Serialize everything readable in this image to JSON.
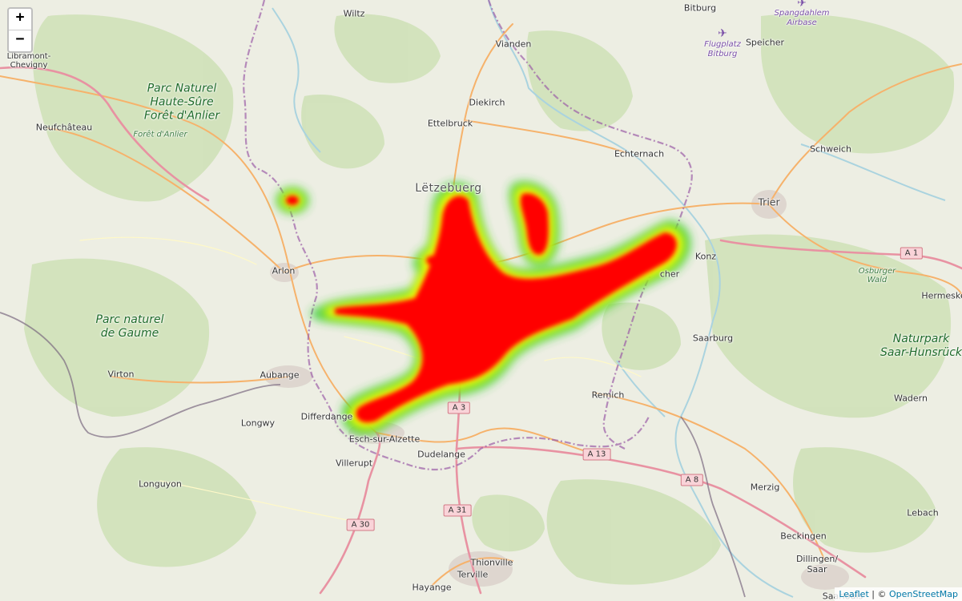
{
  "zoom": {
    "in_label": "+",
    "out_label": "−"
  },
  "attribution": {
    "leaflet": "Leaflet",
    "separator": " | © ",
    "osm": "OpenStreetMap"
  },
  "places": {
    "wiltz": "Wiltz",
    "vianden": "Vianden",
    "diekirch": "Diekirch",
    "ettelbruck": "Ettelbruck",
    "echternach": "Echternach",
    "letzebuerg": "Lëtzebuerg",
    "libramont": "Libramont-\nChevigny",
    "neufchateau": "Neufchâteau",
    "arlon": "Arlon",
    "virton": "Virton",
    "aubange": "Aubange",
    "longwy": "Longwy",
    "differdange": "Differdange",
    "esch": "Esch-sur-Alzette",
    "villerupt": "Villerupt",
    "dudelange": "Dudelange",
    "longuyon": "Longuyon",
    "thionville": "Thionville",
    "terville": "Terville",
    "hayange": "Hayange",
    "remich": "Remich",
    "grevenmacher": "cher",
    "konz": "Konz",
    "trier": "Trier",
    "saarburg": "Saarburg",
    "schweich": "Schweich",
    "bitburg": "Bitburg",
    "speicher": "Speicher",
    "hermeskeil": "Hermeske",
    "wadern": "Wadern",
    "merzig": "Merzig",
    "lebach": "Lebach",
    "beckingen": "Beckingen",
    "dillingen": "Dillingen/\nSaar",
    "saarlouis": "Saarlouis"
  },
  "parks": {
    "haute_sure": "Parc Naturel\nHaute-Sûre\nForêt d'Anlier",
    "foret_anlier": "Forêt d'Anlier",
    "gaume": "Parc naturel\nde Gaume",
    "saar_hunsruck": "Naturpark\nSaar-Hunsrück",
    "osburger": "Osburger\nWald"
  },
  "airports": {
    "spangdahlem": "Spangdahlem\nAirbase",
    "bitburg": "Flugplatz\nBitburg"
  },
  "roads": {
    "a1": "A 1",
    "a3": "A 3",
    "a13": "A 13",
    "a8": "A 8",
    "a31": "A 31",
    "a30": "A 30"
  },
  "heatmap": {
    "colors": {
      "low": "#33cc33",
      "mid": "#ffff00",
      "high": "#ff0000"
    },
    "description_levels": [
      "low",
      "mid",
      "high"
    ]
  }
}
